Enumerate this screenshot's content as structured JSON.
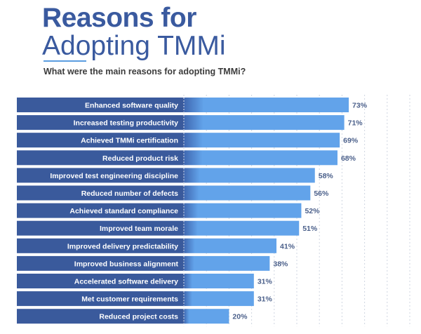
{
  "title_line1": "Reasons for",
  "title_line2": "Adopting TMMi",
  "chart_data": {
    "type": "bar",
    "orientation": "horizontal",
    "title": "What were the main reasons for adopting TMMi?",
    "categories": [
      "Enhanced software quality",
      "Increased testing productivity",
      "Achieved TMMi certification",
      "Reduced product risk",
      "Improved test engineering discipline",
      "Reduced number of defects",
      "Achieved standard compliance",
      "Improved team morale",
      "Improved delivery predictability",
      "Improved business alignment",
      "Accelerated software delivery",
      "Met customer requirements",
      "Reduced project costs"
    ],
    "values": [
      73,
      71,
      69,
      68,
      58,
      56,
      52,
      51,
      41,
      38,
      31,
      31,
      20
    ],
    "value_suffix": "%",
    "xlim": [
      0,
      100
    ],
    "grid": "vertical dashed every 10%",
    "colors": {
      "label_band": "#3a5a9c",
      "bar": "#62a3ea",
      "value_text": "#4a5f8a",
      "title": "#3a5a9f"
    }
  }
}
